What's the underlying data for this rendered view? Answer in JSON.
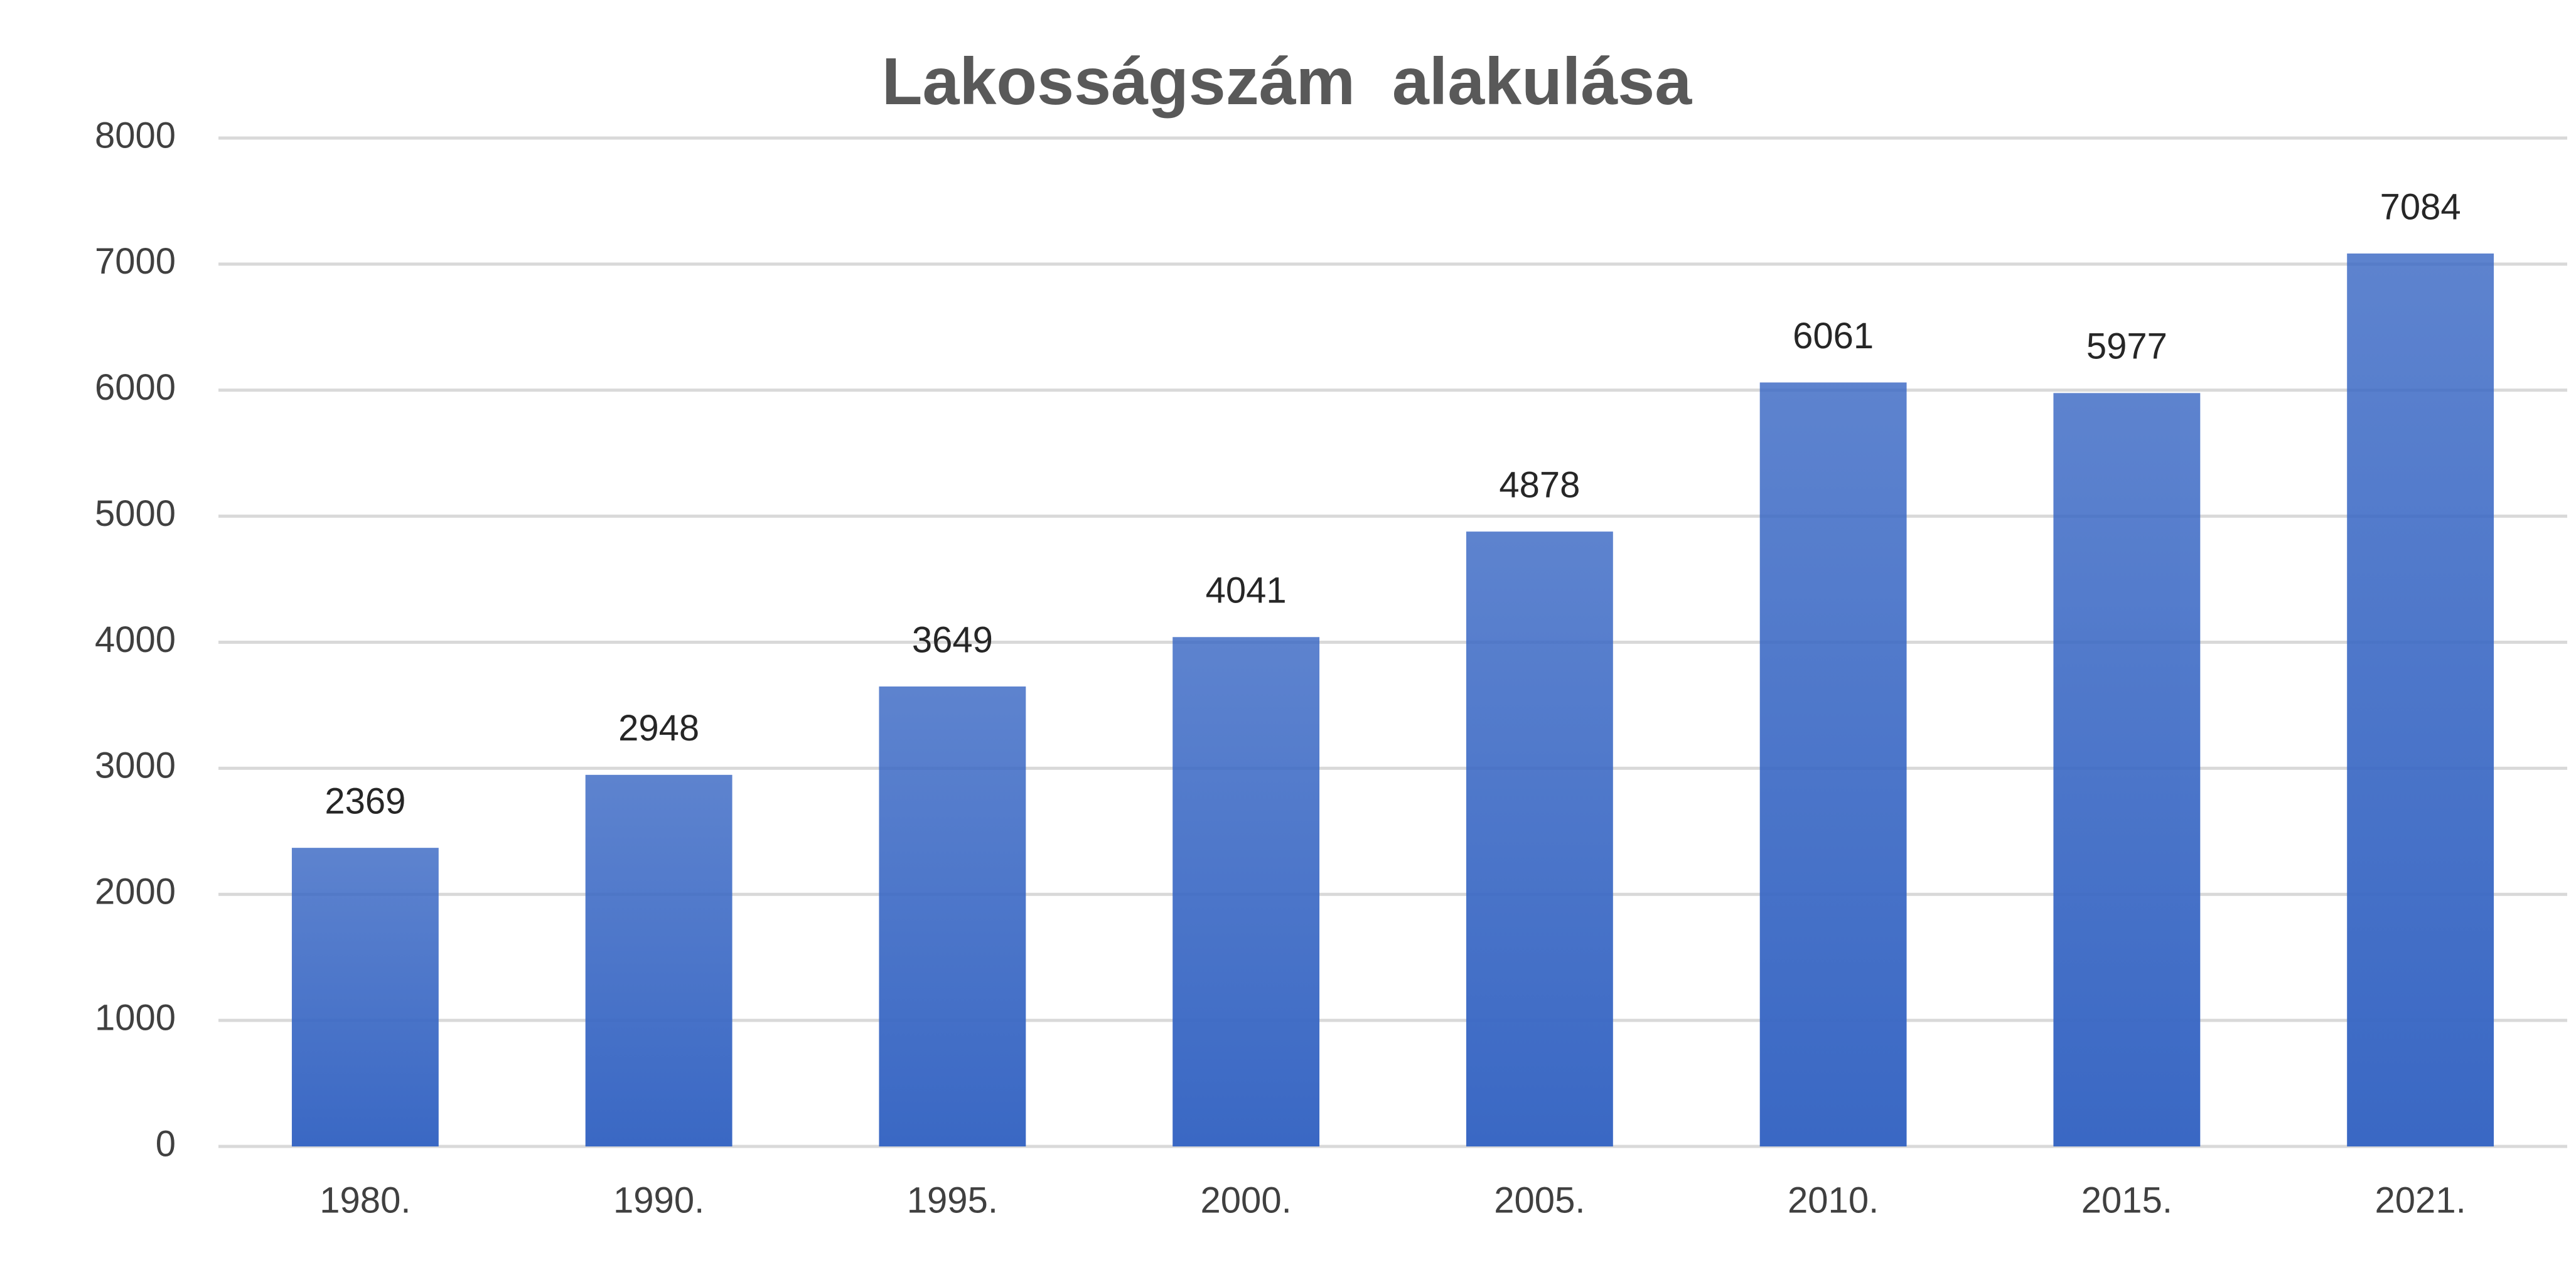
{
  "chart_data": {
    "type": "bar",
    "title": "Lakosságszám  alakulása",
    "categories": [
      "1980.",
      "1990.",
      "1995.",
      "2000.",
      "2005.",
      "2010.",
      "2015.",
      "2021."
    ],
    "values": [
      2369,
      2948,
      3649,
      4041,
      4878,
      6061,
      5977,
      7084
    ],
    "color": "#3a68c4",
    "ylim": [
      0,
      8000
    ],
    "yticks": [
      0,
      1000,
      2000,
      3000,
      4000,
      5000,
      6000,
      7000,
      8000
    ],
    "grid": true
  }
}
